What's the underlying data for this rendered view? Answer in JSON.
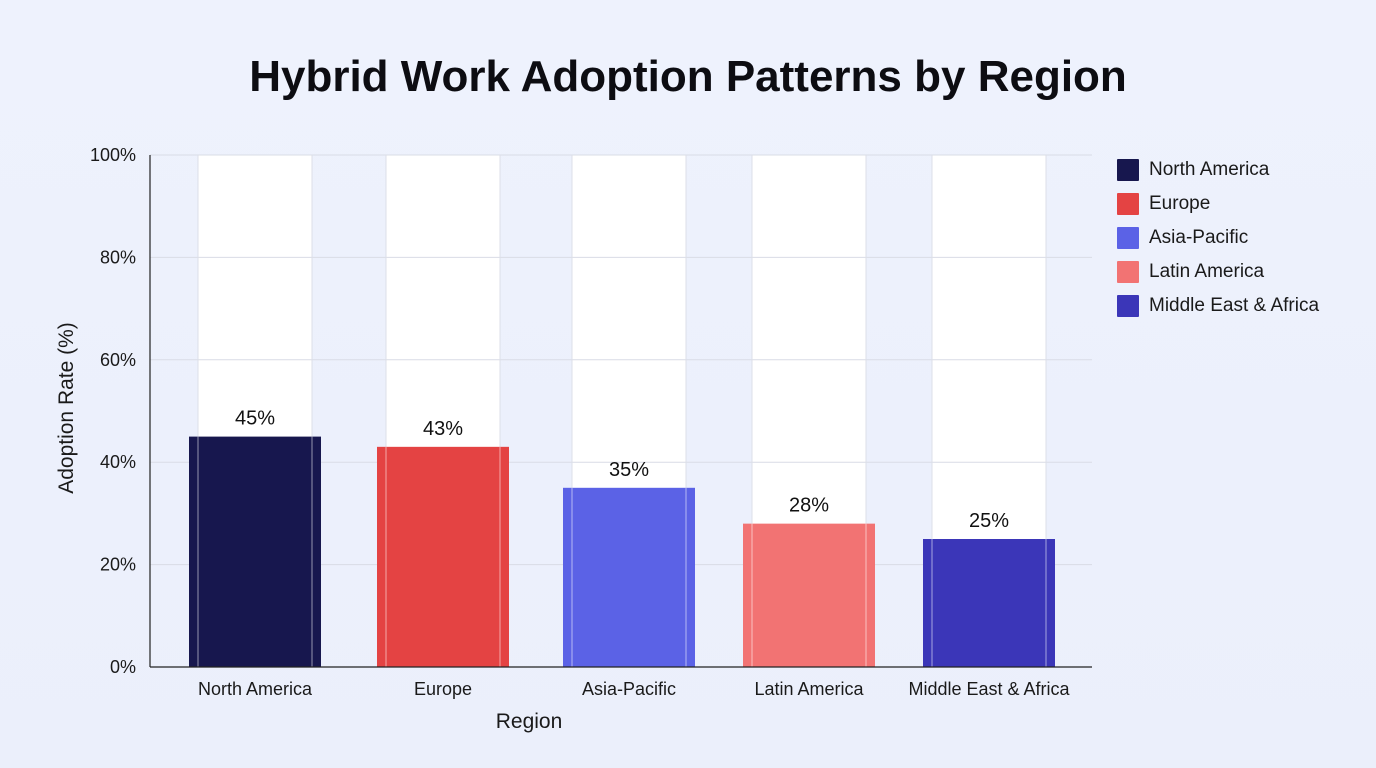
{
  "chart_data": {
    "type": "bar",
    "title": "Hybrid Work Adoption Patterns by Region",
    "xlabel": "Region",
    "ylabel": "Adoption Rate (%)",
    "categories": [
      "North America",
      "Europe",
      "Asia-Pacific",
      "Latin America",
      "Middle East & Africa"
    ],
    "values": [
      45,
      43,
      35,
      28,
      25
    ],
    "value_labels": [
      "45%",
      "43%",
      "35%",
      "28%",
      "25%"
    ],
    "colors": [
      "#17174e",
      "#e44343",
      "#5b62e6",
      "#f27373",
      "#3b36b8"
    ],
    "ylim": [
      0,
      100
    ],
    "yticks": [
      0,
      20,
      40,
      60,
      80,
      100
    ],
    "ytick_labels": [
      "0%",
      "20%",
      "40%",
      "60%",
      "80%",
      "100%"
    ],
    "grid": true,
    "legend_position": "top-right",
    "legend": [
      "North America",
      "Europe",
      "Asia-Pacific",
      "Latin America",
      "Middle East & Africa"
    ]
  }
}
